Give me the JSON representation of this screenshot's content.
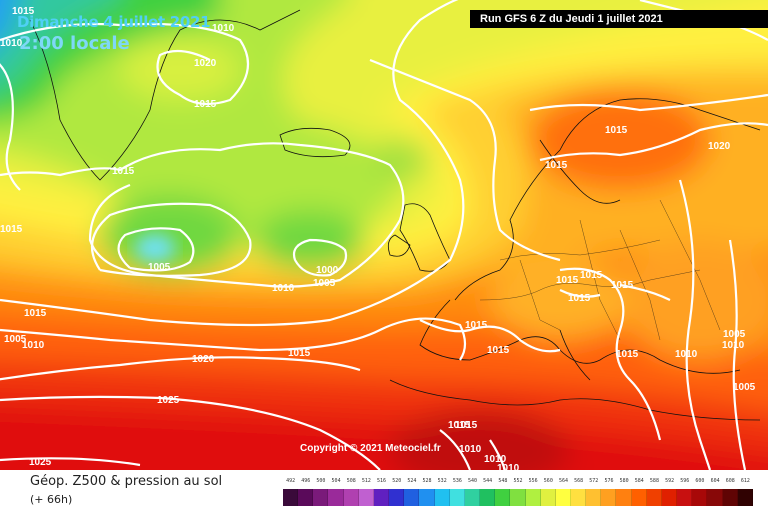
{
  "title": {
    "date": "Dimanche 4 juillet 2021",
    "time": "2:00 locale"
  },
  "run_info": "Run GFS 6 Z du Jeudi 1 juillet 2021",
  "copyright": "Copyright © 2021 Meteociel.fr",
  "footer": {
    "variable": "Géop. Z500 & pression au sol",
    "lead_time": "(+ 66h)"
  },
  "isobar_labels": [
    "1015",
    "1010",
    "1010",
    "1020",
    "1015",
    "1015",
    "1015",
    "1005",
    "1000",
    "1005",
    "1010",
    "1015",
    "1005",
    "1010",
    "1020",
    "1015",
    "1025",
    "1025",
    "1015",
    "1015",
    "1015",
    "1015",
    "1015",
    "1015",
    "1020",
    "1015",
    "1015",
    "1015",
    "1015",
    "1010",
    "1005",
    "1010",
    "1005",
    "1015",
    "1010",
    "1010",
    "1010"
  ],
  "legend": {
    "scale_values": [
      "492",
      "496",
      "500",
      "504",
      "508",
      "512",
      "516",
      "520",
      "524",
      "528",
      "532",
      "536",
      "540",
      "544",
      "548",
      "552",
      "556",
      "560",
      "564",
      "568",
      "572",
      "576",
      "580",
      "584",
      "588",
      "592",
      "596",
      "600",
      "604",
      "608",
      "612"
    ],
    "scale_colors": [
      "#3a0a3a",
      "#5a0a5a",
      "#7a1a7a",
      "#9a2a9a",
      "#b040b0",
      "#c060d0",
      "#6020c0",
      "#3030d0",
      "#2060e0",
      "#2090f0",
      "#20c0f0",
      "#40e0e0",
      "#30d0a0",
      "#20c060",
      "#40d040",
      "#80e040",
      "#b0f040",
      "#e0f040",
      "#ffff40",
      "#ffe040",
      "#ffc030",
      "#ffa020",
      "#ff8010",
      "#ff6000",
      "#f04000",
      "#e02000",
      "#c81010",
      "#a80808",
      "#880808",
      "#600404",
      "#300202"
    ]
  }
}
